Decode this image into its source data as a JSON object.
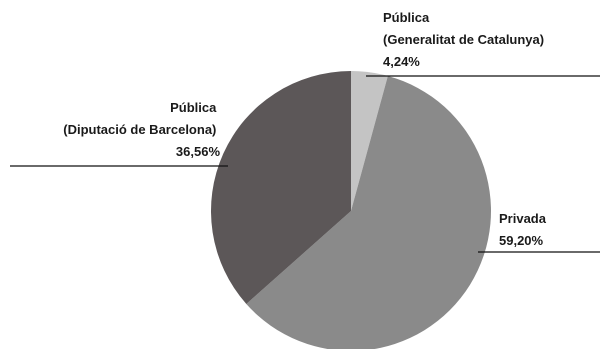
{
  "chart_data": {
    "type": "pie",
    "title": "",
    "slices": [
      {
        "label_lines": [
          "Pública",
          "(Generalitat de Catalunya)"
        ],
        "value_label": "4,24%",
        "value": 4.24,
        "color": "#c4c4c4"
      },
      {
        "label_lines": [
          "Privada"
        ],
        "value_label": "59,20%",
        "value": 59.2,
        "color": "#8a8a8a"
      },
      {
        "label_lines": [
          "Pública",
          "(Diputació de Barcelona)"
        ],
        "value_label": "36,56%",
        "value": 36.56,
        "color": "#5c5758"
      }
    ],
    "start": "12 o'clock",
    "direction": "clockwise"
  }
}
